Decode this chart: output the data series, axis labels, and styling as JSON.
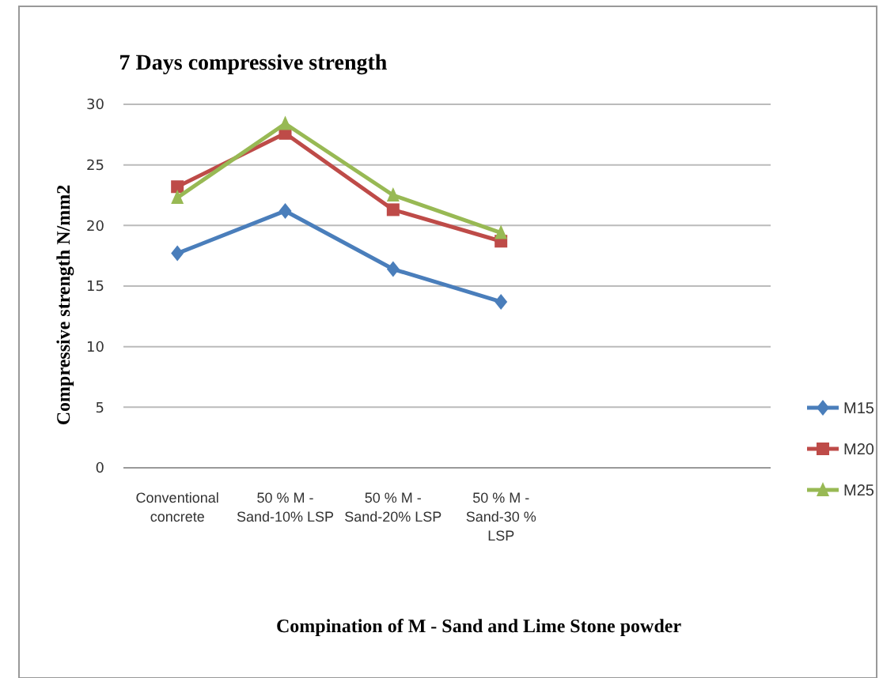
{
  "chart_data": {
    "type": "line",
    "title": "7 Days compressive strength",
    "xlabel": "Compination of M - Sand and Lime Stone powder",
    "ylabel": "Compressive strength N/mm2",
    "categories": [
      "Conventional concrete",
      "50 % M - Sand-10% LSP",
      "50 % M - Sand-20% LSP",
      "50 % M - Sand-30 % LSP",
      null,
      null
    ],
    "series": [
      {
        "name": "M15",
        "color": "#4a7ebb",
        "marker": "diamond",
        "values": [
          17.7,
          21.2,
          16.4,
          13.7,
          null,
          null
        ]
      },
      {
        "name": "M20",
        "color": "#be4b48",
        "marker": "square",
        "values": [
          23.2,
          27.6,
          21.3,
          18.7,
          null,
          null
        ]
      },
      {
        "name": "M25",
        "color": "#98b954",
        "marker": "triangle",
        "values": [
          22.3,
          28.4,
          22.5,
          19.4,
          null,
          null
        ]
      }
    ],
    "ylim": [
      0,
      30
    ],
    "yticks": [
      0,
      5,
      10,
      15,
      20,
      25,
      30
    ],
    "grid": "y",
    "legend": "right"
  }
}
